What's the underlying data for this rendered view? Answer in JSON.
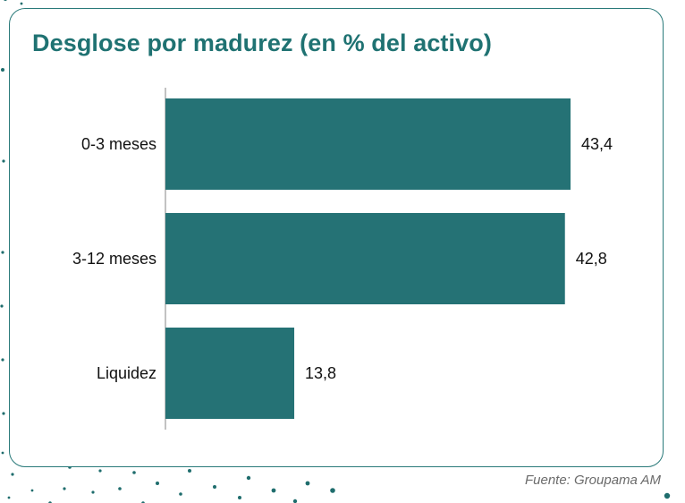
{
  "chart_data": {
    "type": "bar",
    "orientation": "horizontal",
    "title": "Desglose por madurez (en % del activo)",
    "categories": [
      "0-3 meses",
      "3-12 meses",
      "Liquidez"
    ],
    "values": [
      43.4,
      42.8,
      13.8
    ],
    "value_labels": [
      "43,4",
      "42,8",
      "13,8"
    ],
    "xlim": [
      0,
      48
    ],
    "grid": false,
    "bar_color": "#257275"
  },
  "source": "Fuente: Groupama AM",
  "colors": {
    "accent": "#1f7272",
    "card_border": "#2a7a7a",
    "dots": "#1f6d6d"
  }
}
